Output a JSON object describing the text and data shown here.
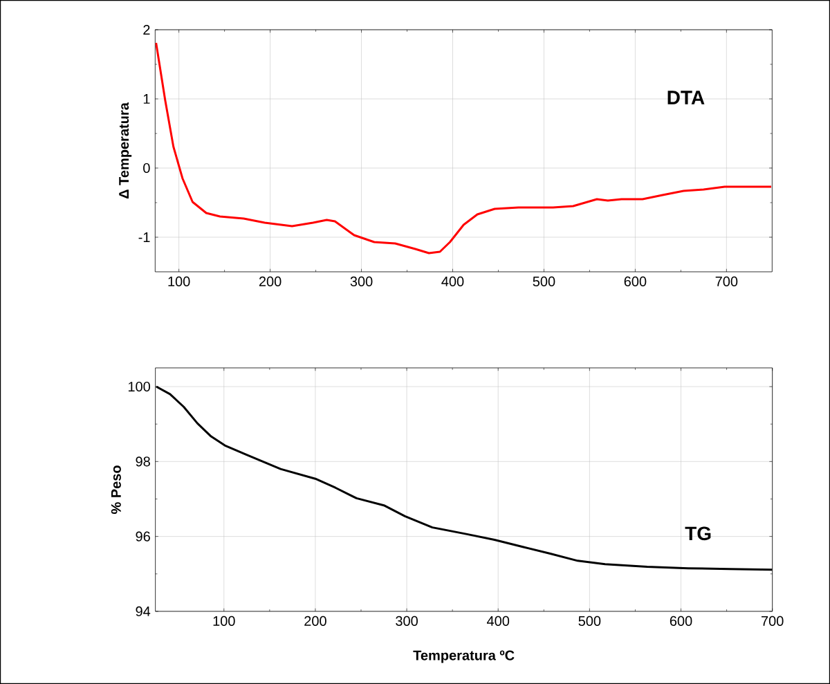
{
  "chart_data": [
    {
      "type": "line",
      "ylabel": "Δ Temperatura",
      "xlim": [
        74,
        750
      ],
      "ylim": [
        -1.5,
        2
      ],
      "xticks": [
        100,
        200,
        300,
        400,
        500,
        600,
        700
      ],
      "yticks": [
        -1,
        0,
        1,
        2
      ],
      "grid": true,
      "series": [
        {
          "name": "DTA",
          "color": "#ff0000",
          "x": [
            75,
            85,
            94,
            104,
            115,
            130,
            145,
            171,
            194,
            224,
            247,
            262,
            271,
            292,
            314,
            337,
            359,
            374,
            386,
            397,
            412,
            427,
            446,
            472,
            510,
            532,
            558,
            570,
            585,
            608,
            630,
            653,
            675,
            698,
            728,
            749
          ],
          "values": [
            1.81,
            0.98,
            0.31,
            -0.15,
            -0.49,
            -0.65,
            -0.7,
            -0.73,
            -0.79,
            -0.84,
            -0.79,
            -0.75,
            -0.77,
            -0.97,
            -1.07,
            -1.09,
            -1.17,
            -1.23,
            -1.21,
            -1.07,
            -0.82,
            -0.67,
            -0.59,
            -0.57,
            -0.57,
            -0.55,
            -0.45,
            -0.47,
            -0.45,
            -0.45,
            -0.39,
            -0.33,
            -0.31,
            -0.27,
            -0.27,
            -0.27
          ]
        }
      ]
    },
    {
      "type": "line",
      "xlabel": "Temperatura ºC",
      "ylabel": "% Peso",
      "xlim": [
        25,
        700
      ],
      "ylim": [
        94,
        100.5
      ],
      "xticks": [
        100,
        200,
        300,
        400,
        500,
        600,
        700
      ],
      "yticks": [
        94,
        96,
        98,
        100
      ],
      "grid": true,
      "series": [
        {
          "name": "TG",
          "color": "#000000",
          "x": [
            26,
            41,
            56,
            71,
            86,
            101,
            124,
            162,
            200,
            222,
            245,
            275,
            298,
            328,
            366,
            396,
            427,
            457,
            487,
            517,
            563,
            608,
            653,
            700
          ],
          "values": [
            100.0,
            99.8,
            99.46,
            99.02,
            98.67,
            98.43,
            98.19,
            97.8,
            97.54,
            97.3,
            97.02,
            96.83,
            96.54,
            96.24,
            96.06,
            95.91,
            95.72,
            95.54,
            95.35,
            95.26,
            95.19,
            95.15,
            95.13,
            95.11
          ]
        }
      ]
    }
  ]
}
